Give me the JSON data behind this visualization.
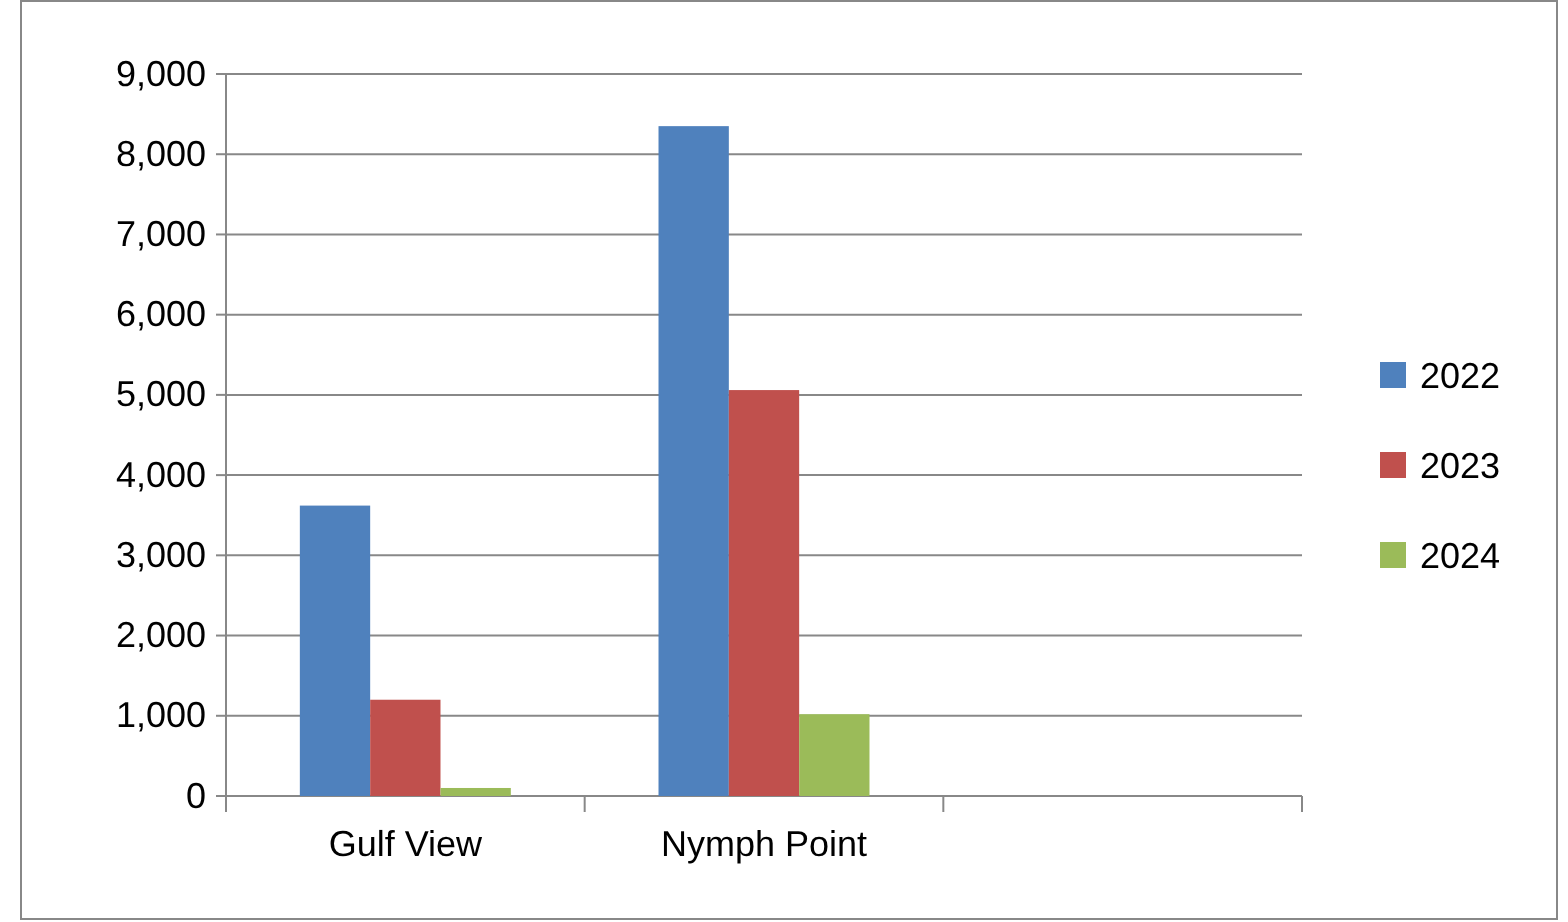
{
  "chart_data": {
    "type": "bar",
    "categories": [
      "Gulf View",
      "Nymph Point",
      null
    ],
    "series": [
      {
        "name": "2022",
        "color": "#4f81bd",
        "values": [
          3620,
          8350,
          null
        ]
      },
      {
        "name": "2023",
        "color": "#c0504d",
        "values": [
          1200,
          5060,
          null
        ]
      },
      {
        "name": "2024",
        "color": "#9bbb59",
        "values": [
          100,
          1020,
          null
        ]
      }
    ],
    "ylim": [
      0,
      9000
    ],
    "yticks": [
      {
        "value": 0,
        "label": "0"
      },
      {
        "value": 1000,
        "label": "1,000"
      },
      {
        "value": 2000,
        "label": "2,000"
      },
      {
        "value": 3000,
        "label": "3,000"
      },
      {
        "value": 4000,
        "label": "4,000"
      },
      {
        "value": 5000,
        "label": "5,000"
      },
      {
        "value": 6000,
        "label": "6,000"
      },
      {
        "value": 7000,
        "label": "7,000"
      },
      {
        "value": 8000,
        "label": "8,000"
      },
      {
        "value": 9000,
        "label": "9,000"
      }
    ],
    "grid": "y",
    "legend": "right"
  }
}
